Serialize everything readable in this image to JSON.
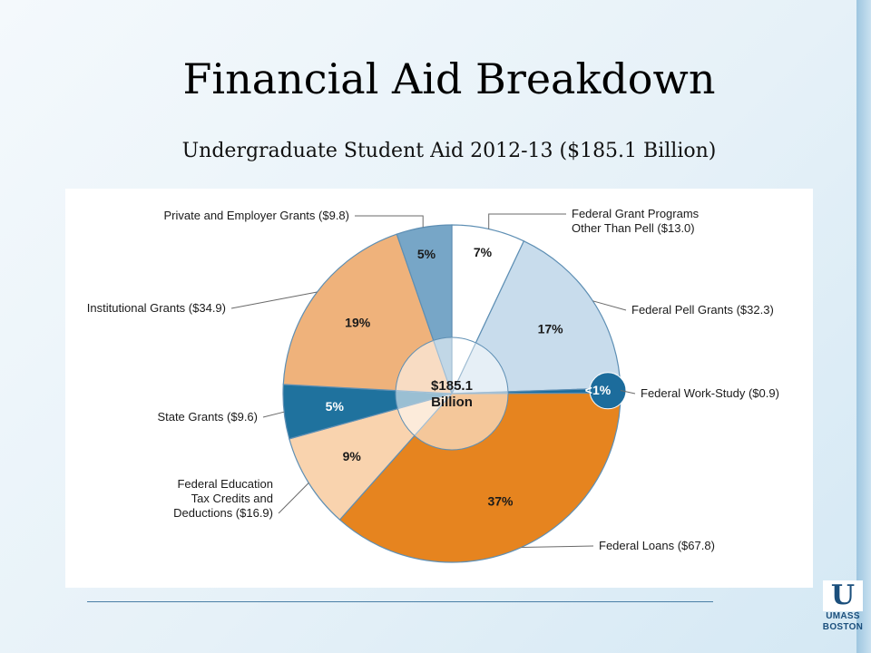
{
  "slide": {
    "title": "Financial Aid Breakdown",
    "subtitle": "Undergraduate Student Aid 2012-13 ($185.1 Billion)"
  },
  "logo": {
    "line1": "UMASS",
    "line2": "BOSTON",
    "color": "#1b4f7c"
  },
  "chart_data": {
    "type": "pie",
    "total": 185.1,
    "center_label": [
      "$185.1",
      "Billion"
    ],
    "slices": [
      {
        "label": [
          "Federal Grant Programs",
          "Other Than Pell ($13.0)"
        ],
        "value": 13.0,
        "pct_label": "7%",
        "color": "#ffffff",
        "text_color": "#1a1a1a"
      },
      {
        "label": [
          "Federal Pell Grants ($32.3)"
        ],
        "value": 32.3,
        "pct_label": "17%",
        "color": "#c8dcec",
        "text_color": "#1a1a1a"
      },
      {
        "label": [
          "Federal Work-Study ($0.9)"
        ],
        "value": 0.9,
        "pct_label": "<1%",
        "color": "#1c6c9c",
        "text_color": "#ffffff"
      },
      {
        "label": [
          "Federal Loans ($67.8)"
        ],
        "value": 67.8,
        "pct_label": "37%",
        "color": "#e6841f",
        "text_color": "#1a1a1a"
      },
      {
        "label": [
          "Federal Education",
          "Tax Credits and",
          "Deductions ($16.9)"
        ],
        "value": 16.9,
        "pct_label": "9%",
        "color": "#f9d3ae",
        "text_color": "#1a1a1a"
      },
      {
        "label": [
          "State Grants ($9.6)"
        ],
        "value": 9.6,
        "pct_label": "5%",
        "color": "#1f729e",
        "text_color": "#ffffff"
      },
      {
        "label": [
          "Institutional Grants ($34.9)"
        ],
        "value": 34.9,
        "pct_label": "19%",
        "color": "#efb27b",
        "text_color": "#1a1a1a"
      },
      {
        "label": [
          "Private and Employer Grants ($9.8)"
        ],
        "value": 9.8,
        "pct_label": "5%",
        "color": "#77a6c7",
        "text_color": "#1a1a1a"
      }
    ]
  }
}
